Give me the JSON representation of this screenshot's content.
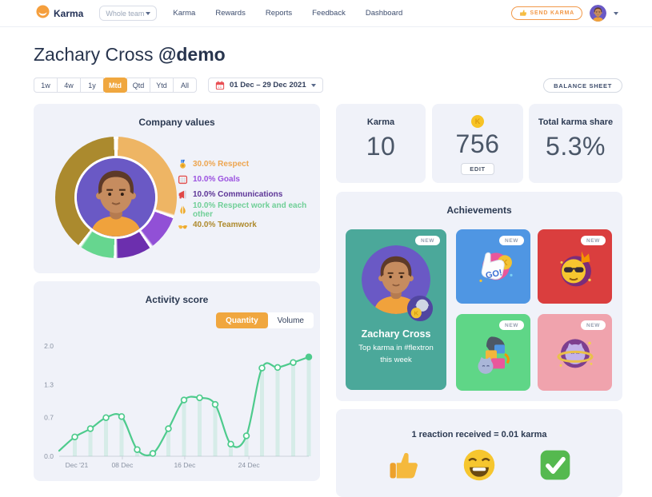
{
  "nav": {
    "logo_text": "Karma",
    "team_selector": "Whole team",
    "items": [
      "Karma",
      "Rewards",
      "Reports",
      "Feedback",
      "Dashboard"
    ],
    "send_karma_label": "SEND KARMA"
  },
  "header": {
    "title_name": "Zachary Cross ",
    "title_handle": "@demo"
  },
  "filters": {
    "ranges": [
      "1w",
      "4w",
      "1y",
      "Mtd",
      "Qtd",
      "Ytd",
      "All"
    ],
    "selected_range": "Mtd",
    "date_range": "01 Dec – 29 Dec 2021",
    "balance_sheet_label": "BALANCE SHEET"
  },
  "company_values": {
    "title": "Company values",
    "legend": [
      {
        "icon": "medal-icon",
        "label": "30.0% Respect",
        "color": "#eda54f",
        "segment": 30
      },
      {
        "icon": "goal-icon",
        "label": "10.0% Goals",
        "color": "#9b51e0",
        "segment": 10
      },
      {
        "icon": "megaphone-icon",
        "label": "10.0% Communications",
        "color": "#5d3597",
        "segment": 10
      },
      {
        "icon": "pray-icon",
        "label": "10.0% Respect work and each other",
        "color": "#6fcf97",
        "segment": 10
      },
      {
        "icon": "hands-icon",
        "label": "40.0% Teamwork",
        "color": "#ae8a2d",
        "segment": 40
      }
    ],
    "segment_colors": [
      "#eeb564",
      "#9150d6",
      "#6c2fae",
      "#66d68f",
      "#ab8a2e"
    ]
  },
  "stats": {
    "karma": {
      "label": "Karma",
      "value": "10"
    },
    "coins": {
      "icon": "karma-coin-icon",
      "value": "756",
      "edit_label": "EDIT"
    },
    "share": {
      "label": "Total karma share",
      "value": "5.3%"
    }
  },
  "achievements": {
    "title": "Achievements",
    "new_badge": "NEW",
    "featured": {
      "name": "Zachary Cross",
      "description": "Top karma in #flextron this week",
      "bg": "#4ba89a"
    },
    "cards": [
      {
        "icon": "foam-finger-go",
        "bg": "#4f96e3"
      },
      {
        "icon": "cool-crown-emoji",
        "bg": "#da3e3e"
      },
      {
        "icon": "gift-cat",
        "bg": "#5fd687"
      },
      {
        "icon": "cat-planet",
        "bg": "#f0a3ad"
      }
    ]
  },
  "activity": {
    "title": "Activity score",
    "toggle": {
      "options": [
        "Quantity",
        "Volume"
      ],
      "selected": "Quantity"
    }
  },
  "chart_data": {
    "type": "line",
    "title": "Activity score",
    "series": [
      {
        "name": "Quantity",
        "values": [
          0.1,
          0.35,
          0.5,
          0.7,
          0.72,
          0.12,
          0.05,
          0.5,
          1.02,
          1.06,
          0.94,
          0.22,
          0.37,
          1.6,
          1.61,
          1.7,
          1.8
        ]
      }
    ],
    "xtick_labels": [
      "Dec '21",
      "08 Dec",
      "16 Dec",
      "24 Dec"
    ],
    "ytick_labels": [
      "0.0",
      "0.7",
      "1.3",
      "2.0"
    ],
    "ylim": [
      0,
      2.0
    ],
    "line_color": "#4ecb8d",
    "area_bar_color": "rgba(78,203,141,0.16)",
    "grid": false,
    "legend_position": "none"
  },
  "reactions": {
    "title": "1 reaction received = 0.01 karma",
    "icons": [
      "thumbs-up-icon",
      "laugh-emoji-icon",
      "check-icon"
    ]
  },
  "colors": {
    "accent_orange": "#f0a73f",
    "send_karma_orange": "#f2994a",
    "card_bg": "#f0f2f9",
    "featured_teal": "#4ba89a"
  }
}
